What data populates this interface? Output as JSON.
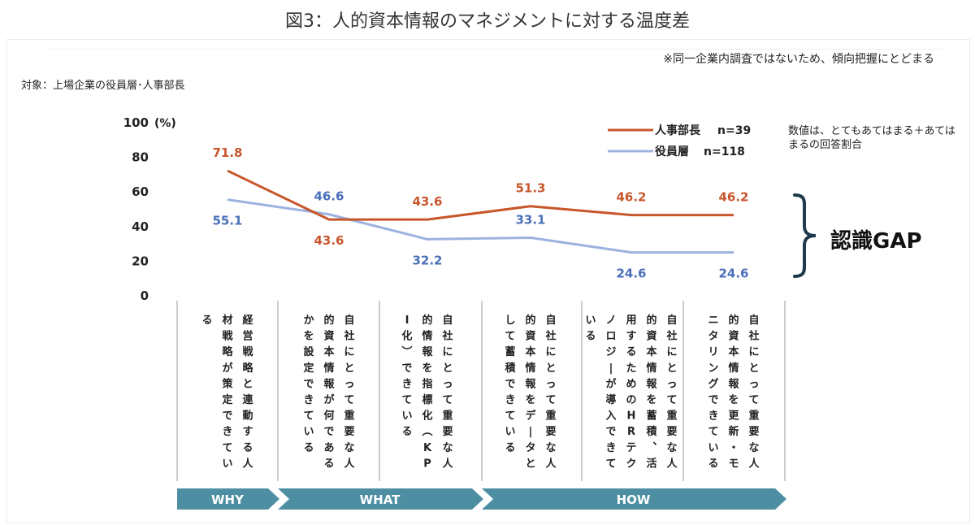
{
  "header": {
    "title": "図3：人的資本情報のマネジメントに対する温度差"
  },
  "notes": {
    "survey_note": "※同一企業内調査ではないため、傾向把握にとどまる",
    "target": "対象：上場企業の役員層･人事部長",
    "value_note": "数値は、とてもあてはまる＋あてはまるの回答割合",
    "gap_label": "認識GAP"
  },
  "colors": {
    "hr": "#c8562b",
    "exec": "#9cb3e0",
    "exec_label": "#4a6fb8",
    "arrow": "#4d8ea3"
  },
  "chart_data": {
    "type": "line",
    "categories": [
      "経営戦略と連動する人材戦略が策定できている",
      "自社にとって重要な人的資本情報が何であるかを設定できている",
      "自社にとって重要な人的情報を指標化（KPI化）できている",
      "自社にとって重要な人的資本情報をデータとして蓄積できている",
      "自社にとって重要な人的資本情報を蓄積、活用するためのHRテクノロジーが導入できている",
      "自社にとって重要な人的資本情報を更新・モニタリングできている"
    ],
    "series": [
      {
        "name": "人事部長",
        "n": "n=39",
        "values": [
          71.8,
          43.6,
          43.6,
          51.3,
          46.2,
          46.2
        ]
      },
      {
        "name": "役員層",
        "n": "n=118",
        "values": [
          55.1,
          46.6,
          32.2,
          33.1,
          24.6,
          24.6
        ]
      }
    ],
    "ylabel": "(%)",
    "ylim": [
      0,
      100
    ],
    "yticks": [
      0,
      20,
      40,
      60,
      80,
      100
    ],
    "groups": [
      {
        "label": "WHY",
        "from": 0,
        "to": 0
      },
      {
        "label": "WHAT",
        "from": 1,
        "to": 2
      },
      {
        "label": "HOW",
        "from": 3,
        "to": 5
      }
    ]
  }
}
